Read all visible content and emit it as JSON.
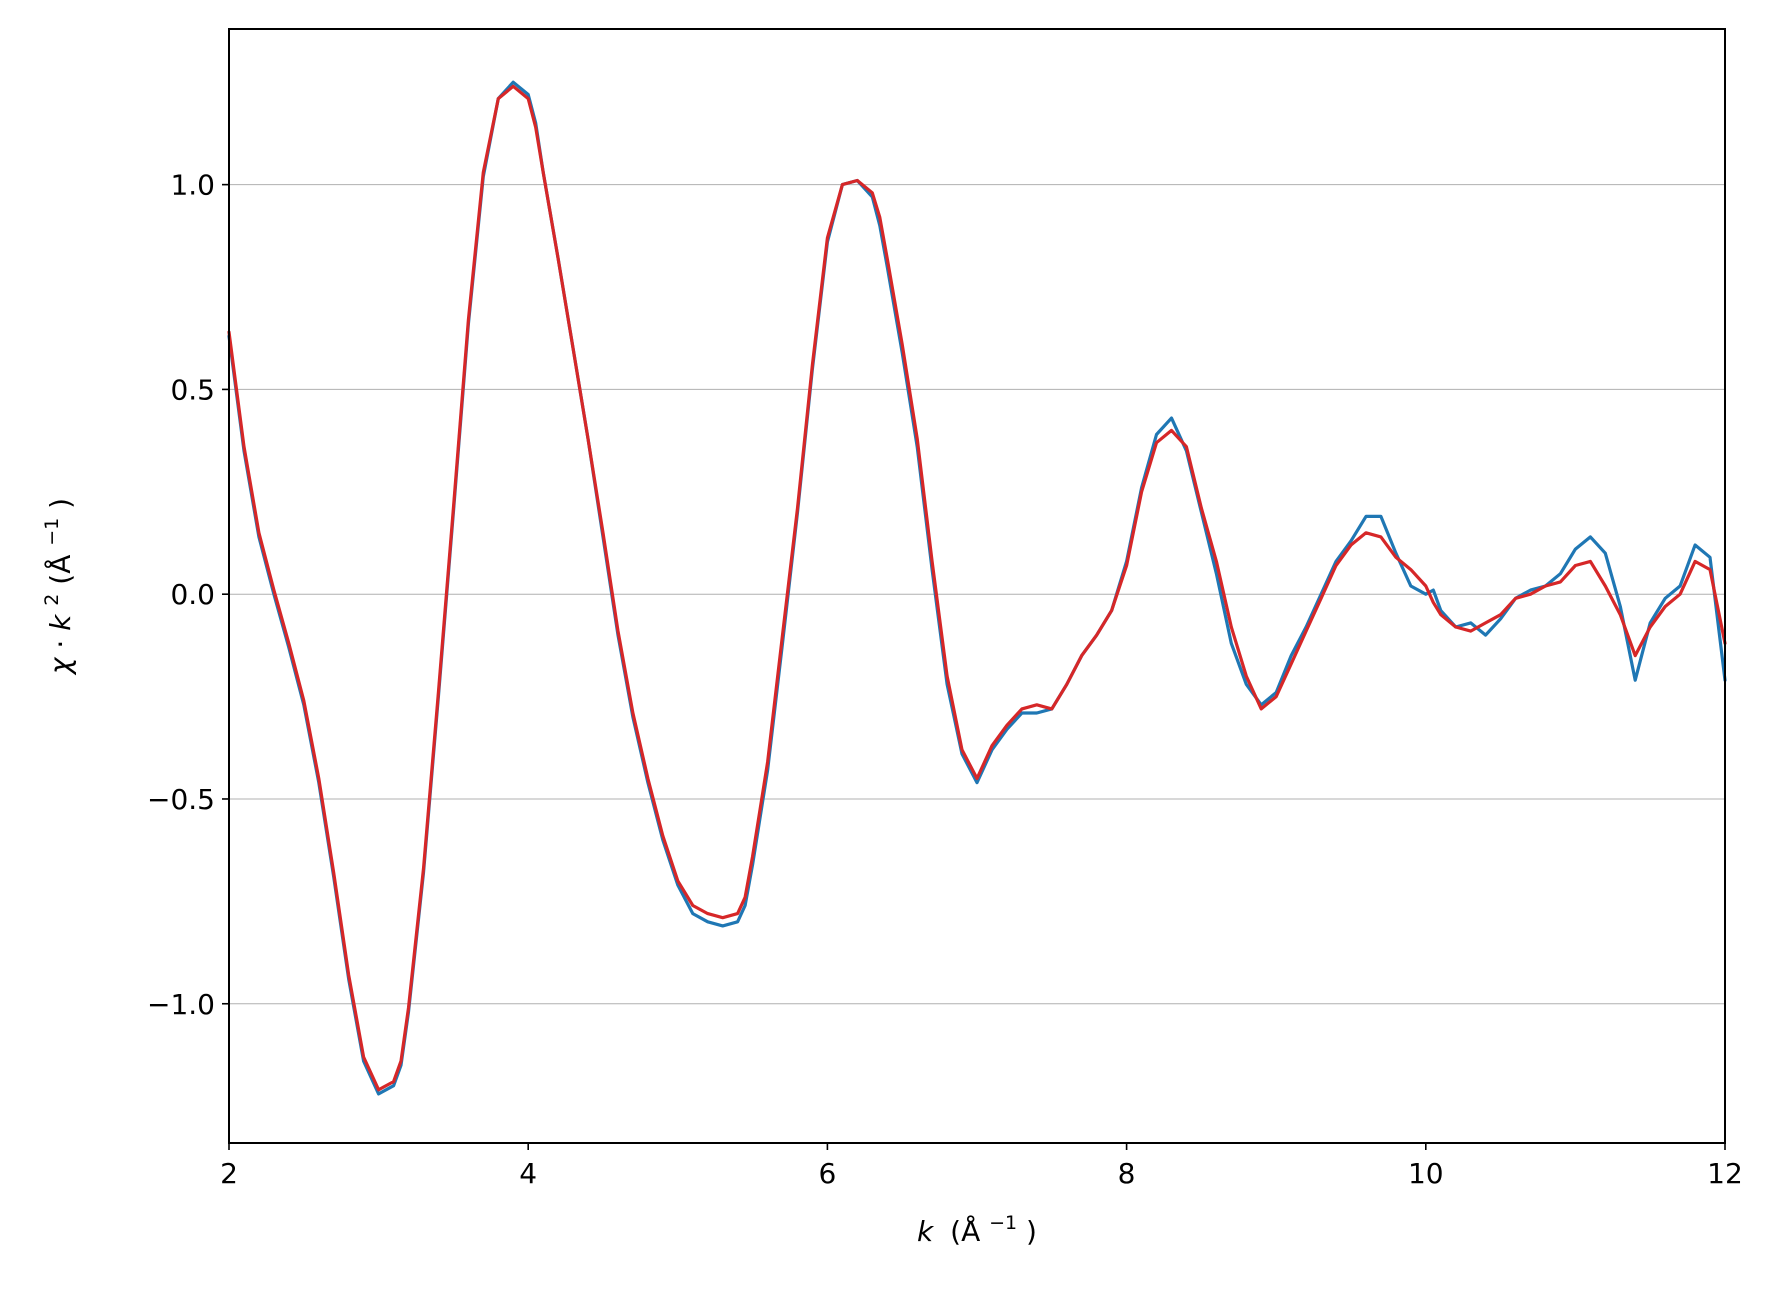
{
  "chart_data": {
    "type": "line",
    "title": "",
    "xlabel": {
      "var": "k",
      "unit": "(Å",
      "exp": "−1",
      "close": ")"
    },
    "ylabel": {
      "chi": "χ",
      "dot": " · ",
      "var": "k",
      "pow": "2",
      "unit": " (Å",
      "exp": "−1",
      "close": ")"
    },
    "xlim": [
      2,
      12
    ],
    "ylim": [
      -1.34,
      1.38
    ],
    "xticks": [
      2,
      4,
      6,
      8,
      10,
      12
    ],
    "xtick_labels": [
      "2",
      "4",
      "6",
      "8",
      "10",
      "12"
    ],
    "yticks": [
      -1.0,
      -0.5,
      0.0,
      0.5,
      1.0
    ],
    "ytick_labels": [
      "−1.0",
      "−0.5",
      "0.0",
      "0.5",
      "1.0"
    ],
    "grid": "horizontal",
    "grid_color": "#b0b0b0",
    "legend": "none",
    "series": [
      {
        "color": "#1f77b4",
        "x": [
          2.0,
          2.1,
          2.2,
          2.3,
          2.4,
          2.5,
          2.6,
          2.7,
          2.8,
          2.9,
          3.0,
          3.1,
          3.15,
          3.2,
          3.3,
          3.4,
          3.5,
          3.6,
          3.7,
          3.8,
          3.9,
          4.0,
          4.05,
          4.1,
          4.2,
          4.3,
          4.4,
          4.5,
          4.6,
          4.7,
          4.8,
          4.9,
          5.0,
          5.1,
          5.2,
          5.3,
          5.4,
          5.45,
          5.5,
          5.6,
          5.7,
          5.8,
          5.9,
          6.0,
          6.1,
          6.2,
          6.3,
          6.35,
          6.4,
          6.5,
          6.6,
          6.7,
          6.8,
          6.9,
          7.0,
          7.1,
          7.2,
          7.3,
          7.4,
          7.5,
          7.6,
          7.7,
          7.8,
          7.9,
          8.0,
          8.1,
          8.2,
          8.3,
          8.4,
          8.5,
          8.6,
          8.7,
          8.8,
          8.9,
          9.0,
          9.1,
          9.2,
          9.3,
          9.4,
          9.5,
          9.6,
          9.7,
          9.8,
          9.9,
          10.0,
          10.05,
          10.1,
          10.2,
          10.3,
          10.4,
          10.5,
          10.6,
          10.7,
          10.8,
          10.9,
          11.0,
          11.1,
          11.2,
          11.3,
          11.4,
          11.5,
          11.6,
          11.7,
          11.8,
          11.9,
          12.0
        ],
        "y": [
          0.63,
          0.35,
          0.14,
          0.0,
          -0.13,
          -0.27,
          -0.46,
          -0.69,
          -0.94,
          -1.14,
          -1.22,
          -1.2,
          -1.15,
          -1.02,
          -0.68,
          -0.25,
          0.2,
          0.66,
          1.02,
          1.21,
          1.25,
          1.22,
          1.15,
          1.03,
          0.82,
          0.6,
          0.38,
          0.14,
          -0.1,
          -0.3,
          -0.46,
          -0.6,
          -0.71,
          -0.78,
          -0.8,
          -0.81,
          -0.8,
          -0.76,
          -0.66,
          -0.43,
          -0.12,
          0.2,
          0.55,
          0.86,
          1.0,
          1.01,
          0.97,
          0.9,
          0.8,
          0.59,
          0.36,
          0.06,
          -0.22,
          -0.39,
          -0.46,
          -0.38,
          -0.33,
          -0.29,
          -0.29,
          -0.28,
          -0.22,
          -0.15,
          -0.1,
          -0.04,
          0.08,
          0.26,
          0.39,
          0.43,
          0.35,
          0.2,
          0.05,
          -0.12,
          -0.22,
          -0.27,
          -0.24,
          -0.15,
          -0.08,
          0.0,
          0.08,
          0.13,
          0.19,
          0.19,
          0.1,
          0.02,
          0.0,
          0.01,
          -0.04,
          -0.08,
          -0.07,
          -0.1,
          -0.06,
          -0.01,
          0.01,
          0.02,
          0.05,
          0.11,
          0.14,
          0.1,
          -0.03,
          -0.21,
          -0.07,
          -0.01,
          0.02,
          0.12,
          0.09,
          -0.21
        ]
      },
      {
        "color": "#d62728",
        "x": [
          2.0,
          2.1,
          2.2,
          2.3,
          2.4,
          2.5,
          2.6,
          2.7,
          2.8,
          2.9,
          3.0,
          3.1,
          3.15,
          3.2,
          3.3,
          3.4,
          3.5,
          3.6,
          3.7,
          3.8,
          3.9,
          4.0,
          4.05,
          4.1,
          4.2,
          4.3,
          4.4,
          4.5,
          4.6,
          4.7,
          4.8,
          4.9,
          5.0,
          5.1,
          5.2,
          5.3,
          5.4,
          5.45,
          5.5,
          5.6,
          5.7,
          5.8,
          5.9,
          6.0,
          6.1,
          6.2,
          6.3,
          6.35,
          6.4,
          6.5,
          6.6,
          6.7,
          6.8,
          6.9,
          7.0,
          7.1,
          7.2,
          7.3,
          7.4,
          7.5,
          7.6,
          7.7,
          7.8,
          7.9,
          8.0,
          8.1,
          8.2,
          8.3,
          8.4,
          8.5,
          8.6,
          8.7,
          8.8,
          8.9,
          9.0,
          9.1,
          9.2,
          9.3,
          9.4,
          9.5,
          9.6,
          9.7,
          9.8,
          9.9,
          10.0,
          10.05,
          10.1,
          10.2,
          10.3,
          10.4,
          10.5,
          10.6,
          10.7,
          10.8,
          10.9,
          11.0,
          11.1,
          11.2,
          11.3,
          11.4,
          11.5,
          11.6,
          11.7,
          11.8,
          11.9,
          12.0
        ],
        "y": [
          0.64,
          0.36,
          0.15,
          0.01,
          -0.12,
          -0.26,
          -0.45,
          -0.68,
          -0.93,
          -1.13,
          -1.21,
          -1.19,
          -1.14,
          -1.01,
          -0.67,
          -0.24,
          0.21,
          0.67,
          1.03,
          1.21,
          1.24,
          1.21,
          1.14,
          1.03,
          0.82,
          0.6,
          0.38,
          0.15,
          -0.09,
          -0.29,
          -0.45,
          -0.59,
          -0.7,
          -0.76,
          -0.78,
          -0.79,
          -0.78,
          -0.74,
          -0.64,
          -0.41,
          -0.1,
          0.21,
          0.56,
          0.87,
          1.0,
          1.01,
          0.98,
          0.92,
          0.82,
          0.61,
          0.38,
          0.08,
          -0.2,
          -0.38,
          -0.45,
          -0.37,
          -0.32,
          -0.28,
          -0.27,
          -0.28,
          -0.22,
          -0.15,
          -0.1,
          -0.04,
          0.07,
          0.25,
          0.37,
          0.4,
          0.36,
          0.21,
          0.08,
          -0.08,
          -0.2,
          -0.28,
          -0.25,
          -0.17,
          -0.09,
          -0.01,
          0.07,
          0.12,
          0.15,
          0.14,
          0.09,
          0.06,
          0.02,
          -0.02,
          -0.05,
          -0.08,
          -0.09,
          -0.07,
          -0.05,
          -0.01,
          0.0,
          0.02,
          0.03,
          0.07,
          0.08,
          0.02,
          -0.05,
          -0.15,
          -0.08,
          -0.03,
          0.0,
          0.08,
          0.06,
          -0.12
        ]
      }
    ]
  }
}
